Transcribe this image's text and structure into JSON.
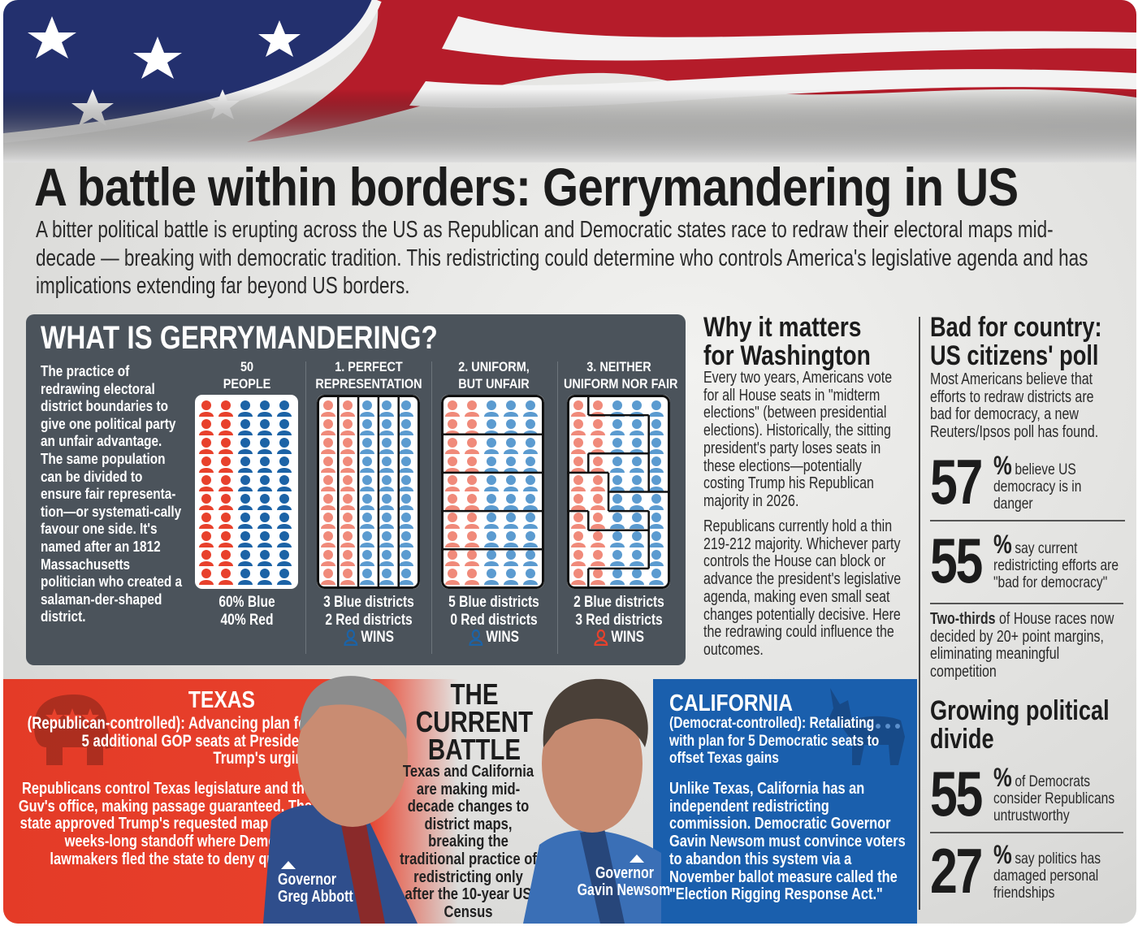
{
  "title": "A battle within borders: Gerrymandering in US",
  "subtitle": "A bitter political battle is erupting across the US as Republican and Democratic states race to redraw their electoral maps mid-decade — breaking with democratic tradition. This redistricting could determine who controls America's legislative agenda and has implications extending far beyond US borders.",
  "colors": {
    "red": "#e8412c",
    "blue": "#1c63a6",
    "light_red": "#f08a7a",
    "light_blue": "#5b9bd0",
    "panel": "#4b535b",
    "texas_red": "#e8412c",
    "california_blue": "#1a5fad"
  },
  "what_is": {
    "heading": "WHAT IS GERRYMANDERING?",
    "description": "The practice of redrawing electoral district boundaries to give one political party an unfair advantage. The same population can be divided to ensure fair representa-tion—or systemati-cally favour one side. It's named after an 1812 Massachusetts politician who created a salaman-der-shaped district.",
    "population": {
      "total": 50,
      "blue_share_pct": 60,
      "red_share_pct": 40,
      "columns": 5,
      "rows": 10,
      "red_columns": 2
    },
    "panels": [
      {
        "header1": "50",
        "header2": "PEOPLE",
        "line1": "60% Blue",
        "line2": "40% Red",
        "winner": null,
        "wins": ""
      },
      {
        "header1": "1. PERFECT",
        "header2": "REPRESENTATION",
        "line1": "3 Blue districts",
        "line2": "2 Red districts",
        "winner": "blue",
        "wins": "WINS",
        "blue_districts": 3,
        "red_districts": 2
      },
      {
        "header1": "2. UNIFORM,",
        "header2": "BUT UNFAIR",
        "line1": "5 Blue districts",
        "line2": "0 Red districts",
        "winner": "blue",
        "wins": "WINS",
        "blue_districts": 5,
        "red_districts": 0
      },
      {
        "header1": "3. NEITHER",
        "header2": "UNIFORM NOR FAIR",
        "line1": "2 Blue districts",
        "line2": "3 Red districts",
        "winner": "red",
        "wins": "WINS",
        "blue_districts": 2,
        "red_districts": 3
      }
    ]
  },
  "why": {
    "heading": "Why it matters for Washington",
    "p1": "Every two years, Americans vote for all House seats in \"midterm elections\" (between presidential elections). Historically, the sitting president's party loses seats in these elections—potentially costing Trump his Republican majority in 2026.",
    "p2": "Republicans currently hold a thin 219-212 majority. Whichever party controls the House can block or advance the president's legislative agenda, making even small seat changes potentially decisive. Here the redrawing could influence the outcomes."
  },
  "poll": {
    "heading": "Bad for country: US citizens' poll",
    "intro": "Most Americans believe that efforts to redraw districts are bad for democracy, a new Reuters/Ipsos poll has found.",
    "stats": [
      {
        "value": "57",
        "unit": "%",
        "text": "believe US democracy is in danger"
      },
      {
        "value": "55",
        "unit": "%",
        "text": "say current redistricting efforts are \"bad for democracy\""
      }
    ],
    "two_thirds_bold": "Two-thirds",
    "two_thirds_text": " of House races now decided by 20+ point margins, eliminating meaningful competition"
  },
  "divide": {
    "heading": "Growing political divide",
    "stats": [
      {
        "value": "55",
        "unit": "%",
        "text": "of Democrats consider Republicans untrustworthy"
      },
      {
        "value": "27",
        "unit": "%",
        "text": "say politics has damaged personal friendships"
      }
    ]
  },
  "texas": {
    "heading": "TEXAS",
    "lead": "(Republican-controlled): Advancing plan for 5 additional GOP seats at President Trump's urging",
    "body": "Republicans control Texas legislature and the Guv's office, making passage guaranteed. The state approved Trump's requested map after a weeks-long standoff where Democratic lawmakers fled the state to deny quorum.",
    "caption1": "Governor",
    "caption2": "Greg Abbott"
  },
  "battle": {
    "heading1": "THE",
    "heading2": "CURRENT",
    "heading3": "BATTLE",
    "body": "Texas and California are making mid-decade changes to district maps, breaking the traditional practice of redistricting only after the 10-year US Census"
  },
  "california": {
    "heading": "CALIFORNIA",
    "lead": "(Democrat-controlled): Retaliating with plan for 5 Democratic seats to offset Texas gains",
    "body": "Unlike Texas, California has an independent redistricting commission. Democratic Governor Gavin Newsom must convince voters to abandon this system via a November ballot measure called the \"Election Rigging Response Act.\"",
    "caption1": "Governor",
    "caption2": "Gavin Newsom"
  }
}
